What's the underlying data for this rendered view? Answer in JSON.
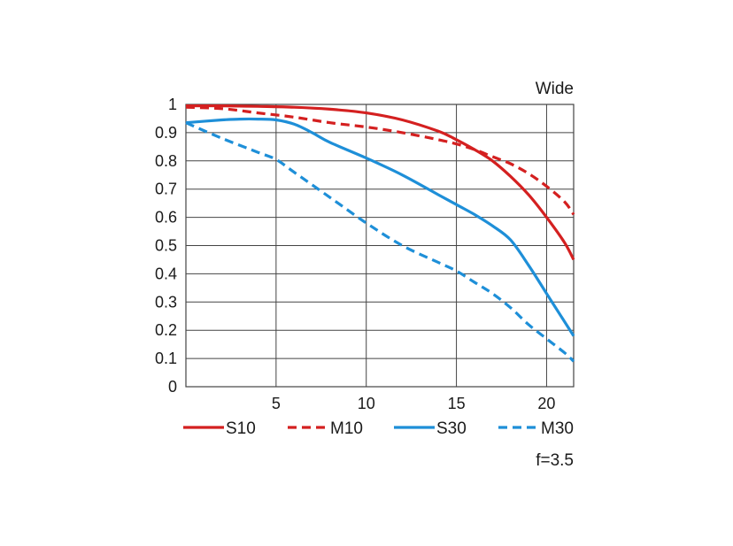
{
  "chart_data": {
    "type": "line",
    "title": "Wide",
    "annotation": "f=3.5",
    "xlabel": "",
    "ylabel": "",
    "xlim": [
      0,
      21.5
    ],
    "ylim": [
      0,
      1
    ],
    "grid": true,
    "legend_position": "bottom",
    "x_ticks": [
      5,
      10,
      15,
      20
    ],
    "x_tick_labels": [
      "5",
      "10",
      "15",
      "20"
    ],
    "y_ticks": [
      0,
      0.1,
      0.2,
      0.3,
      0.4,
      0.5,
      0.6,
      0.7,
      0.8,
      0.9,
      1
    ],
    "y_tick_labels": [
      "0",
      "0.1",
      "0.2",
      "0.3",
      "0.4",
      "0.5",
      "0.6",
      "0.7",
      "0.8",
      "0.9",
      "1"
    ],
    "series": [
      {
        "name": "S10",
        "color": "#d42020",
        "dash": "solid",
        "x": [
          0,
          2,
          4,
          6,
          8,
          10,
          12,
          14,
          15,
          16,
          17,
          18,
          19,
          20,
          21,
          21.5
        ],
        "values": [
          0.995,
          0.995,
          0.993,
          0.99,
          0.983,
          0.97,
          0.945,
          0.905,
          0.875,
          0.84,
          0.8,
          0.745,
          0.68,
          0.6,
          0.51,
          0.45
        ]
      },
      {
        "name": "M10",
        "color": "#d42020",
        "dash": "dashed",
        "x": [
          0,
          2,
          4,
          6,
          8,
          10,
          12,
          14,
          15,
          16,
          17,
          18,
          19,
          20,
          21,
          21.5
        ],
        "values": [
          0.99,
          0.985,
          0.97,
          0.955,
          0.935,
          0.92,
          0.9,
          0.875,
          0.86,
          0.84,
          0.815,
          0.79,
          0.755,
          0.71,
          0.655,
          0.61
        ]
      },
      {
        "name": "S30",
        "color": "#1e8fd8",
        "dash": "solid",
        "x": [
          0,
          2,
          3,
          4,
          5,
          6,
          7,
          8,
          10,
          12,
          14,
          15,
          16,
          17,
          18,
          19,
          20,
          21,
          21.5
        ],
        "values": [
          0.935,
          0.945,
          0.948,
          0.948,
          0.945,
          0.93,
          0.9,
          0.865,
          0.81,
          0.75,
          0.68,
          0.645,
          0.61,
          0.57,
          0.52,
          0.43,
          0.33,
          0.23,
          0.18
        ]
      },
      {
        "name": "M30",
        "color": "#1e8fd8",
        "dash": "dashed",
        "x": [
          0,
          2,
          4,
          5,
          6,
          8,
          10,
          12,
          14,
          15,
          16,
          17,
          18,
          19,
          20,
          21,
          21.5
        ],
        "values": [
          0.935,
          0.88,
          0.83,
          0.805,
          0.76,
          0.67,
          0.58,
          0.5,
          0.44,
          0.41,
          0.37,
          0.33,
          0.28,
          0.22,
          0.17,
          0.12,
          0.09
        ]
      }
    ]
  }
}
